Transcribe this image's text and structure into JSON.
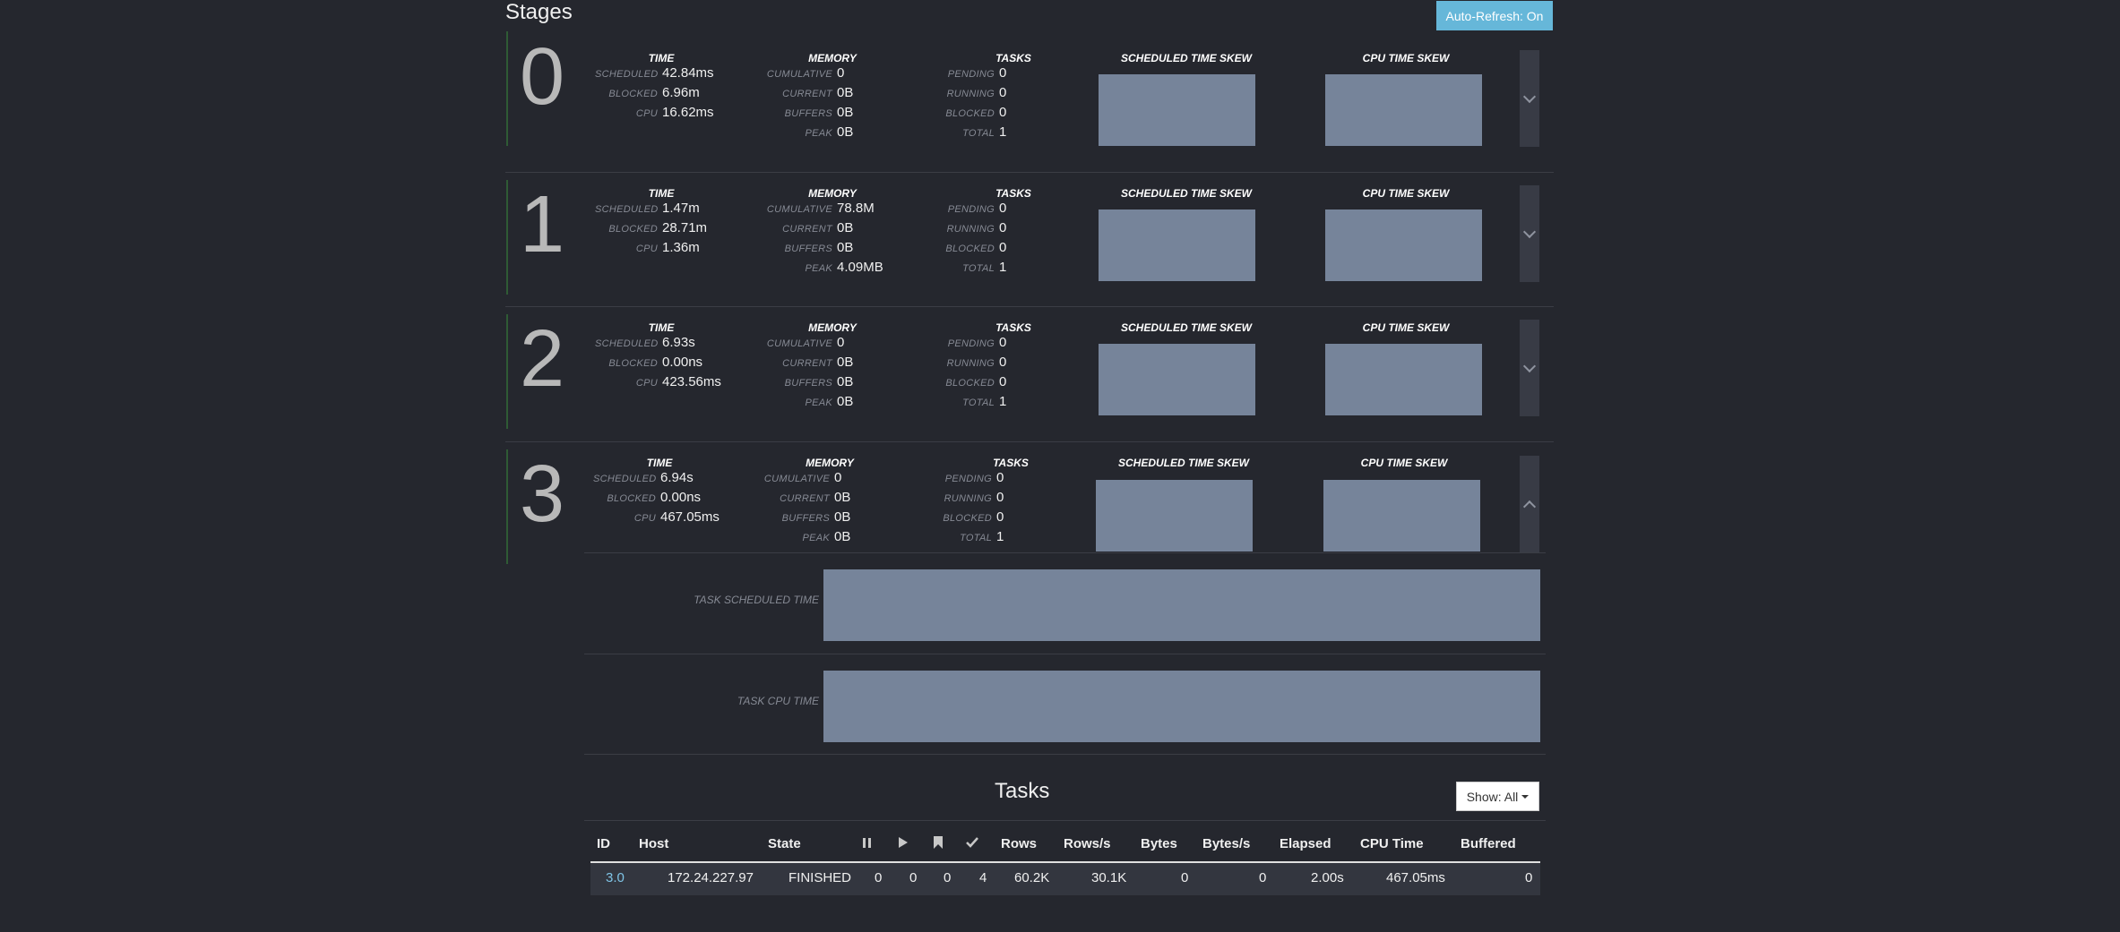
{
  "page": {
    "title": "Stages",
    "auto_refresh_label": "Auto-Refresh: On"
  },
  "labels": {
    "time": "TIME",
    "memory": "MEMORY",
    "tasks": "TASKS",
    "scheduled_skew": "SCHEDULED TIME SKEW",
    "cpu_skew": "CPU TIME SKEW",
    "scheduled": "SCHEDULED",
    "blocked": "BLOCKED",
    "cpu": "CPU",
    "cumulative": "CUMULATIVE",
    "current": "CURRENT",
    "buffers": "BUFFERS",
    "peak": "PEAK",
    "pending": "PENDING",
    "running": "RUNNING",
    "total": "TOTAL",
    "task_scheduled_time": "TASK SCHEDULED TIME",
    "task_cpu_time": "TASK CPU TIME"
  },
  "stages": [
    {
      "id": "0",
      "time": {
        "scheduled": "42.84ms",
        "blocked": "6.96m",
        "cpu": "16.62ms"
      },
      "memory": {
        "cumulative": "0",
        "current": "0B",
        "buffers": "0B",
        "peak": "0B"
      },
      "tasks": {
        "pending": "0",
        "running": "0",
        "blocked": "0",
        "total": "1"
      },
      "expanded": false
    },
    {
      "id": "1",
      "time": {
        "scheduled": "1.47m",
        "blocked": "28.71m",
        "cpu": "1.36m"
      },
      "memory": {
        "cumulative": "78.8M",
        "current": "0B",
        "buffers": "0B",
        "peak": "4.09MB"
      },
      "tasks": {
        "pending": "0",
        "running": "0",
        "blocked": "0",
        "total": "1"
      },
      "expanded": false
    },
    {
      "id": "2",
      "time": {
        "scheduled": "6.93s",
        "blocked": "0.00ns",
        "cpu": "423.56ms"
      },
      "memory": {
        "cumulative": "0",
        "current": "0B",
        "buffers": "0B",
        "peak": "0B"
      },
      "tasks": {
        "pending": "0",
        "running": "0",
        "blocked": "0",
        "total": "1"
      },
      "expanded": false
    },
    {
      "id": "3",
      "time": {
        "scheduled": "6.94s",
        "blocked": "0.00ns",
        "cpu": "467.05ms"
      },
      "memory": {
        "cumulative": "0",
        "current": "0B",
        "buffers": "0B",
        "peak": "0B"
      },
      "tasks": {
        "pending": "0",
        "running": "0",
        "blocked": "0",
        "total": "1"
      },
      "expanded": true
    }
  ],
  "tasks_section": {
    "title": "Tasks",
    "show_label": "Show: All",
    "columns": [
      "ID",
      "Host",
      "State",
      "pause-icon",
      "play-icon",
      "bookmark-icon",
      "check-icon",
      "Rows",
      "Rows/s",
      "Bytes",
      "Bytes/s",
      "Elapsed",
      "CPU Time",
      "Buffered"
    ],
    "headers": {
      "id": "ID",
      "host": "Host",
      "state": "State",
      "rows": "Rows",
      "rows_s": "Rows/s",
      "bytes": "Bytes",
      "bytes_s": "Bytes/s",
      "elapsed": "Elapsed",
      "cpu_time": "CPU Time",
      "buffered": "Buffered"
    },
    "rows": [
      {
        "id": "3.0",
        "host": "172.24.227.97",
        "state": "FINISHED",
        "queued": "0",
        "running": "0",
        "blocked": "0",
        "finished": "4",
        "rows": "60.2K",
        "rows_s": "30.1K",
        "bytes": "0",
        "bytes_s": "0",
        "elapsed": "2.00s",
        "cpu_time": "467.05ms",
        "buffered": "0"
      }
    ]
  },
  "colors": {
    "background": "#25272e",
    "accent": "#66b7d9",
    "chart": "#76849a",
    "link": "#7fc4e6"
  }
}
